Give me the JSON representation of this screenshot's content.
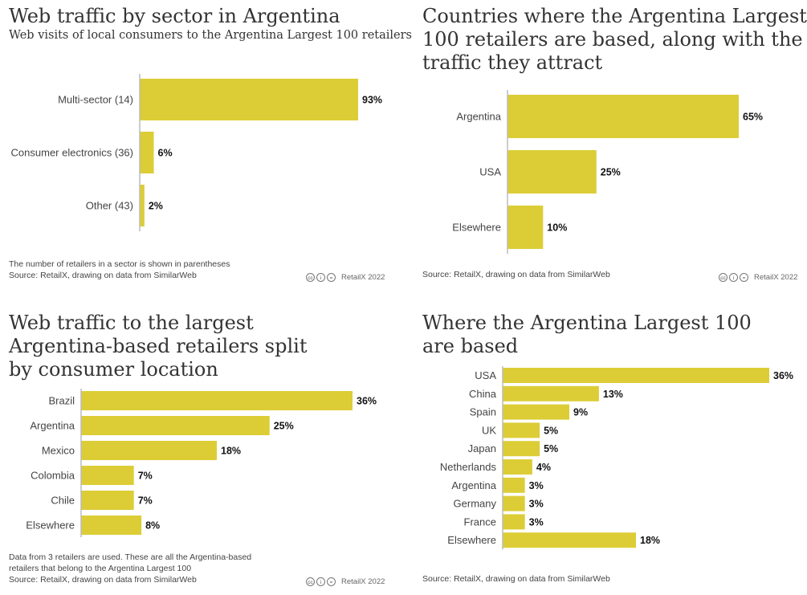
{
  "colors": {
    "bar": "#dccd36",
    "axis": "#bbbbbb"
  },
  "license_icons": [
    "creative-commons-icon",
    "attribution-icon",
    "no-derivatives-icon"
  ],
  "chart_data": [
    {
      "type": "bar",
      "orientation": "horizontal",
      "title": "Web traffic by sector in Argentina",
      "subtitle": "Web visits of local consumers to the Argentina Largest 100 retailers",
      "categories": [
        "Multi-sector (14)",
        "Consumer electronics (36)",
        "Other (43)"
      ],
      "values": [
        93,
        6,
        2
      ],
      "value_labels": [
        "93%",
        "6%",
        "2%"
      ],
      "notes": [
        "The number of retailers in a sector is shown in parentheses",
        "Source: RetailX, drawing on data from SimilarWeb"
      ],
      "credit": "RetailX 2022"
    },
    {
      "type": "bar",
      "orientation": "horizontal",
      "title": "Countries where the Argentina Largest 100 retailers are based, along with the traffic they attract",
      "title_lines": [
        "Countries where the Argentina Largest",
        "100 retailers are based, along with the",
        "traffic they attract"
      ],
      "categories": [
        "Argentina",
        "USA",
        "Elsewhere"
      ],
      "values": [
        65,
        25,
        10
      ],
      "value_labels": [
        "65%",
        "25%",
        "10%"
      ],
      "notes": [
        "Source: RetailX, drawing on data from SimilarWeb"
      ],
      "credit": "RetailX 2022"
    },
    {
      "type": "bar",
      "orientation": "horizontal",
      "title": "Web traffic to the largest Argentina-based retailers split by consumer location",
      "title_lines": [
        "Web traffic to the largest",
        "Argentina-based retailers split",
        "by consumer location"
      ],
      "categories": [
        "Brazil",
        "Argentina",
        "Mexico",
        "Colombia",
        "Chile",
        "Elsewhere"
      ],
      "values": [
        36,
        25,
        18,
        7,
        7,
        8
      ],
      "value_labels": [
        "36%",
        "25%",
        "18%",
        "7%",
        "7%",
        "8%"
      ],
      "notes": [
        "Data from 3 retailers are used. These are all the Argentina-based",
        "retailers that belong to the Argentina Largest 100",
        "Source: RetailX, drawing on data from SimilarWeb"
      ],
      "credit": "RetailX 2022"
    },
    {
      "type": "bar",
      "orientation": "horizontal",
      "title": "Where the Argentina Largest 100 are based",
      "title_lines": [
        "Where the Argentina Largest 100",
        "are based"
      ],
      "categories": [
        "USA",
        "China",
        "Spain",
        "UK",
        "Japan",
        "Netherlands",
        "Argentina",
        "Germany",
        "France",
        "Elsewhere"
      ],
      "values": [
        36,
        13,
        9,
        5,
        5,
        4,
        3,
        3,
        3,
        18
      ],
      "value_labels": [
        "36%",
        "13%",
        "9%",
        "5%",
        "5%",
        "4%",
        "3%",
        "3%",
        "3%",
        "18%"
      ],
      "notes": [
        "Source: RetailX, drawing on data from SimilarWeb"
      ],
      "credit": ""
    }
  ]
}
